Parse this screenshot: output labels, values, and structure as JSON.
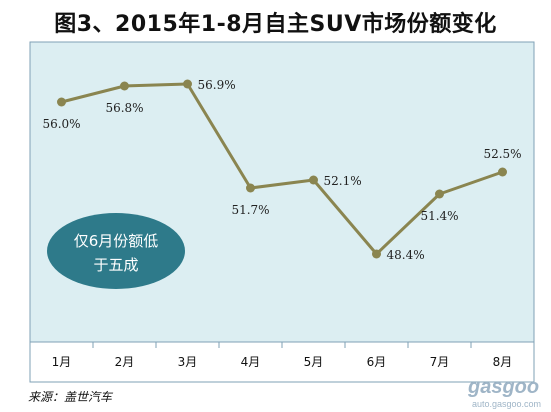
{
  "page": {
    "title": "图3、2015年1-8月自主SUV市场份额变化",
    "source": "来源：盖世汽车",
    "watermark": {
      "logo": "gasgoo",
      "url": "auto.gasgoo.com"
    }
  },
  "chart_data": {
    "type": "line",
    "title": "图3、2015年1-8月自主SUV市场份额变化",
    "categories": [
      "1月",
      "2月",
      "3月",
      "4月",
      "5月",
      "6月",
      "7月",
      "8月"
    ],
    "series": [
      {
        "values": [
          56.0,
          56.8,
          56.9,
          51.7,
          52.1,
          48.4,
          51.4,
          52.5
        ]
      }
    ],
    "data_labels": [
      "56.0%",
      "56.8%",
      "56.9%",
      "51.7%",
      "52.1%",
      "48.4%",
      "51.4%",
      "52.5%"
    ],
    "ylim": [
      44,
      59
    ],
    "grid": false,
    "line_color": "#8a8550",
    "plot_background": "#dceef2",
    "annotation": {
      "text_line1": "仅6月份额低",
      "text_line2": "于五成",
      "color": "#2e7a8a"
    }
  }
}
